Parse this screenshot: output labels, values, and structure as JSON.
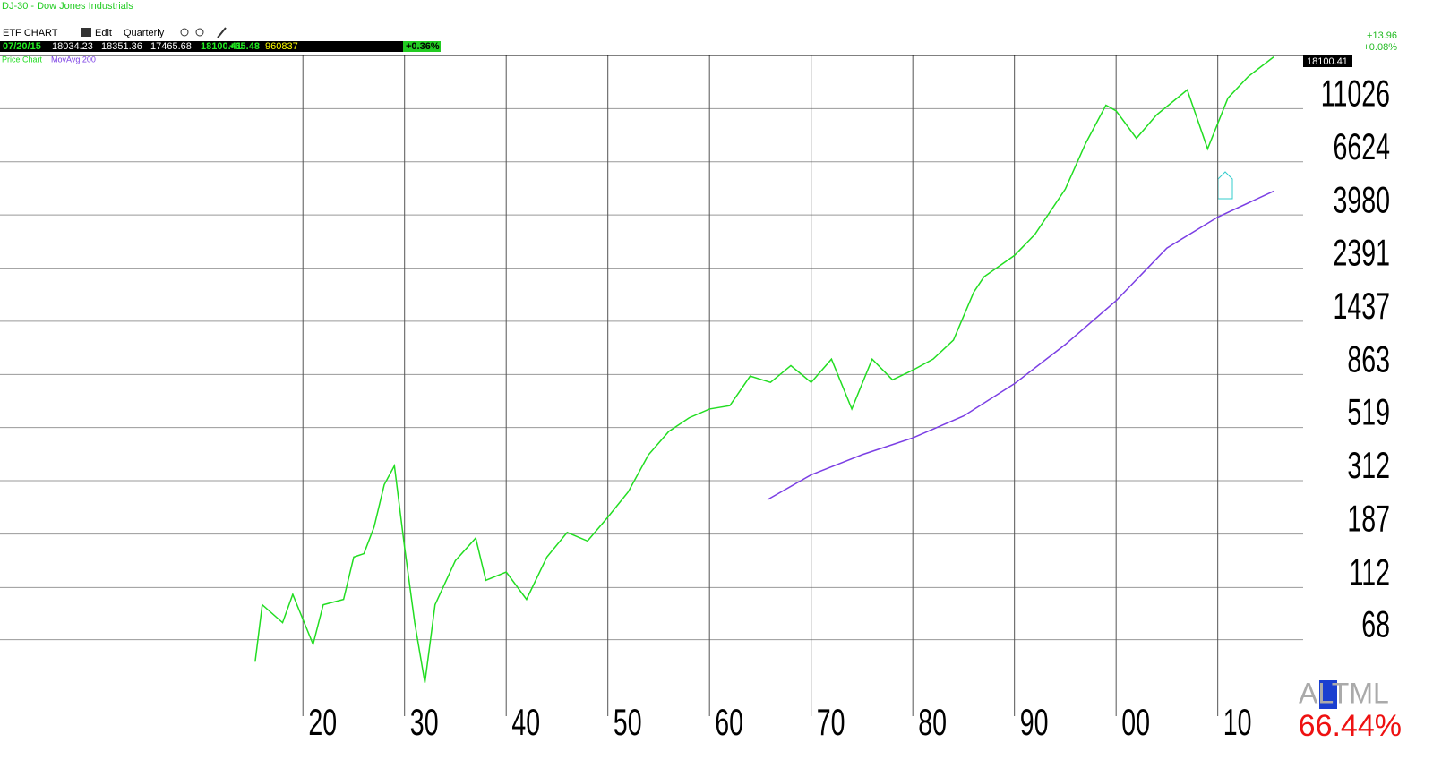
{
  "header": {
    "title": "DJ-30 - Dow Jones Industrials",
    "toolbar": [
      "ETF CHART",
      "Edit",
      "Quarterly"
    ],
    "quote": {
      "date": "07/20/15",
      "open": "18034.23",
      "high": "18351.36",
      "low": "17465.68",
      "close": "18100.41",
      "change": "+65.48",
      "volume": "960837",
      "percent": "+0.36%"
    },
    "right_change": "+13.96",
    "right_percent": "+0.08%",
    "last_price_label": "18100.41",
    "indicator": "ALTML",
    "indicator_value": "66.44%"
  },
  "chart_data": {
    "type": "line",
    "log_scale": true,
    "grid": true,
    "xlim": [
      1890.2,
      2018.4
    ],
    "xticks": [
      {
        "value": 1920,
        "label": "20"
      },
      {
        "value": 1930,
        "label": "30"
      },
      {
        "value": 1940,
        "label": "40"
      },
      {
        "value": 1950,
        "label": "50"
      },
      {
        "value": 1960,
        "label": "60"
      },
      {
        "value": 1970,
        "label": "70"
      },
      {
        "value": 1980,
        "label": "80"
      },
      {
        "value": 1990,
        "label": "90"
      },
      {
        "value": 2000,
        "label": "00"
      },
      {
        "value": 2010,
        "label": "10"
      }
    ],
    "ylim": [
      40.5,
      18350
    ],
    "yticks": [
      68,
      112,
      187,
      312,
      519,
      863,
      1437,
      2391,
      3980,
      6624,
      11026
    ],
    "series": [
      {
        "name": "Price Chart",
        "color": "#22dd22",
        "x": [
          1915.3,
          1916,
          1918,
          1919,
          1921,
          1922,
          1924,
          1925,
          1926,
          1927,
          1928,
          1929,
          1930,
          1931,
          1932,
          1933,
          1935,
          1937,
          1938,
          1940,
          1942,
          1944,
          1946,
          1948,
          1950,
          1952,
          1954,
          1956,
          1958,
          1960,
          1962,
          1964,
          1966,
          1968,
          1970,
          1972,
          1974,
          1976,
          1978,
          1980,
          1982,
          1984,
          1986,
          1987,
          1990,
          1992,
          1995,
          1997,
          1999,
          2000,
          2002,
          2004,
          2007,
          2009,
          2011,
          2013,
          2015.5
        ],
        "values": [
          55,
          95,
          80,
          105,
          65,
          95,
          100,
          150,
          155,
          200,
          300,
          360,
          165,
          80,
          45,
          95,
          145,
          180,
          120,
          130,
          100,
          150,
          190,
          175,
          220,
          280,
          400,
          500,
          570,
          620,
          640,
          850,
          800,
          940,
          800,
          1000,
          620,
          1000,
          820,
          900,
          1000,
          1200,
          1900,
          2200,
          2700,
          3300,
          5100,
          7900,
          11400,
          10800,
          8300,
          10400,
          13200,
          7500,
          12200,
          15000,
          18100
        ]
      },
      {
        "name": "MovAvg 200",
        "color": "#7b3fe4",
        "x": [
          1965.7,
          1970,
          1975,
          1980,
          1985,
          1990,
          1995,
          2000,
          2005,
          2010,
          2015.5
        ],
        "values": [
          260,
          330,
          400,
          470,
          580,
          790,
          1150,
          1750,
          2900,
          3900,
          5000
        ]
      }
    ]
  }
}
